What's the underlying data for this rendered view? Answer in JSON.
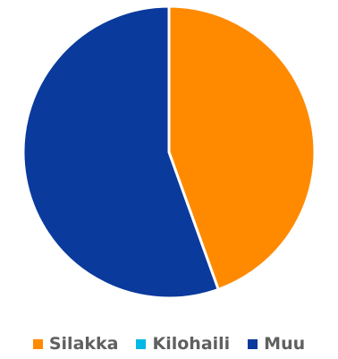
{
  "chart_data": {
    "type": "pie",
    "title": "",
    "legend_position": "bottom",
    "series": [
      {
        "name": "Silakka",
        "value": 44.5,
        "color": "#FF8A00"
      },
      {
        "name": "Kilohaili",
        "value": 0,
        "color": "#00B8E6"
      },
      {
        "name": "Muu",
        "value": 55.5,
        "color": "#0A3A9C"
      }
    ]
  }
}
